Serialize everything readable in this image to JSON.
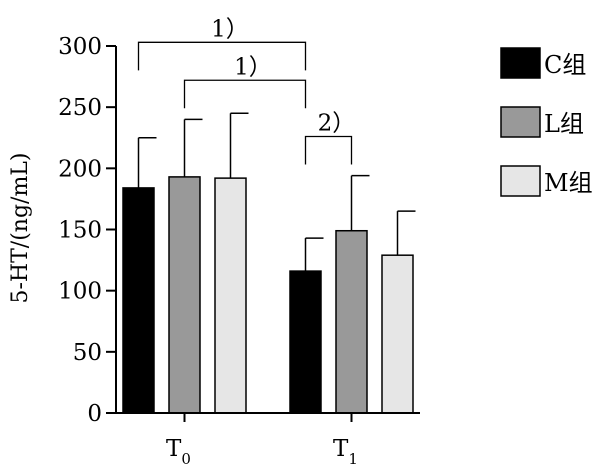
{
  "chart_data": {
    "type": "bar",
    "ylabel": "5-HT/(ng/mL)",
    "ylim": [
      0,
      300
    ],
    "yticks": [
      0,
      50,
      100,
      150,
      200,
      250,
      300
    ],
    "categories": [
      {
        "main": "T",
        "sub": "0"
      },
      {
        "main": "T",
        "sub": "1"
      }
    ],
    "series": [
      {
        "name": "C组",
        "color": "#000000",
        "values": [
          184,
          116
        ],
        "errors": [
          41,
          27
        ]
      },
      {
        "name": "L组",
        "color": "#999999",
        "values": [
          193,
          149
        ],
        "errors": [
          47,
          45
        ]
      },
      {
        "name": "M组",
        "color": "#e6e6e6",
        "values": [
          192,
          129
        ],
        "errors": [
          53,
          36
        ]
      }
    ],
    "legend_position": "right",
    "grid": false,
    "annotations": [
      {
        "label": "1）",
        "from": [
          0,
          0
        ],
        "to": [
          1,
          0
        ],
        "y": 303
      },
      {
        "label": "1）",
        "from": [
          0,
          1
        ],
        "to": [
          1,
          0
        ],
        "y": 272
      },
      {
        "label": "2）",
        "from": [
          1,
          0
        ],
        "to": [
          1,
          1
        ],
        "y": 226
      }
    ]
  }
}
